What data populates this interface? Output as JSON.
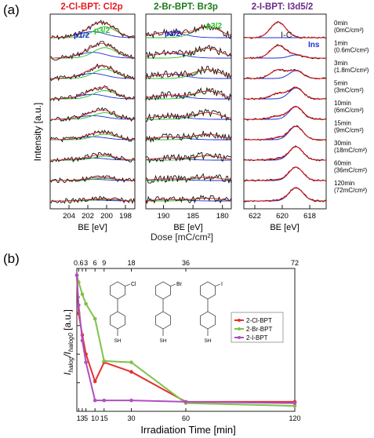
{
  "figure": {
    "panel_a_label": "(a)",
    "panel_b_label": "(b)",
    "top_xlabel": "Dose [mC/cm²]",
    "intensity_label": "Intensity [a.u.]"
  },
  "chart_data": [
    {
      "type": "line",
      "id": "xps-cl2p",
      "title": "2-Cl-BPT: Cl2p",
      "title_color": "#e8191f",
      "xlabel": "BE [eV]",
      "ylabel": "Intensity [a.u.]",
      "xlim": [
        206,
        197
      ],
      "xticks": [
        204,
        202,
        200,
        198
      ],
      "annotations": [
        "p1/2",
        "p3/2"
      ],
      "annotation_colors": [
        "#1f2fd6",
        "#22c322"
      ],
      "components": [
        "p1/2 (blue)",
        "p3/2 (green)",
        "fit envelope (red)",
        "data (black)"
      ],
      "peak_positions": {
        "p1/2": 201.5,
        "p3/2": 200.2
      },
      "relative_peak_height": [
        1.0,
        0.95,
        0.85,
        0.75,
        0.6,
        0.5,
        0.35,
        0.2,
        0.15
      ]
    },
    {
      "type": "line",
      "id": "xps-br3p",
      "title": "2-Br-BPT: Br3p",
      "title_color": "#1a7a1a",
      "xlabel": "BE [eV]",
      "ylabel": "Intensity [a.u.]",
      "xlim": [
        193,
        178.5
      ],
      "xticks": [
        190,
        185,
        180
      ],
      "annotations": [
        "p1/2",
        "p3/2"
      ],
      "annotation_colors": [
        "#1f2fd6",
        "#22c322"
      ],
      "peak_positions": {
        "p1/2": 189.2,
        "p3/2": 182.5
      },
      "relative_peak_height": [
        1.0,
        0.9,
        0.8,
        0.7,
        0.6,
        0.5,
        0.4,
        0.3,
        0.25
      ]
    },
    {
      "type": "line",
      "id": "xps-i3d",
      "title": "2-I-BPT: I3d5/2",
      "title_color": "#6a2a8a",
      "xlabel": "BE [eV]",
      "ylabel": "Intensity [a.u.]",
      "xlim": [
        622.8,
        616.8
      ],
      "xticks": [
        622,
        620,
        618
      ],
      "annotations": [
        "I-C",
        "Ins"
      ],
      "annotation_colors": [
        "#222222",
        "#1f2fd6"
      ],
      "peak_positions": {
        "I-C": 620.3,
        "Ins": 619.0
      },
      "ic_fraction": [
        1.0,
        0.8,
        0.55,
        0.35,
        0.2,
        0.12,
        0.08,
        0.05,
        0.04
      ],
      "ins_fraction": [
        0.0,
        0.2,
        0.5,
        0.7,
        0.8,
        0.85,
        0.85,
        0.85,
        0.85
      ],
      "right_labels": [
        {
          "time": "0min",
          "dose": "(0mC/cm²)"
        },
        {
          "time": "1min",
          "dose": "(0.6mC/cm²)"
        },
        {
          "time": "3min",
          "dose": "(1.8mC/cm²)"
        },
        {
          "time": "5min",
          "dose": "(3mC/cm²)"
        },
        {
          "time": "10min",
          "dose": "(6mC/cm²)"
        },
        {
          "time": "15min",
          "dose": "(9mC/cm²)"
        },
        {
          "time": "30min",
          "dose": "(18mC/cm²)"
        },
        {
          "time": "60min",
          "dose": "(36mC/cm²)"
        },
        {
          "time": "120min",
          "dose": "(72mC/cm²)"
        }
      ]
    },
    {
      "type": "line",
      "id": "halogen-decay",
      "xlabel": "Irradiation Time [min]",
      "ylabel_main": "I",
      "ylabel_sub1": "halog",
      "ylabel_mid": "/I",
      "ylabel_sub2": "halog0",
      "ylabel_unit": " [a.u.]",
      "xlim": [
        0,
        120
      ],
      "ylim": [
        0,
        1.05
      ],
      "xticks": [
        "1",
        "3",
        "5",
        "10",
        "15",
        "30",
        "60",
        "120"
      ],
      "xtick_values": [
        1,
        3,
        5,
        10,
        15,
        30,
        60,
        120
      ],
      "top_xticks": [
        "0.6",
        "3",
        "6",
        "9",
        "18",
        "36",
        "72"
      ],
      "top_xtick_values": [
        1,
        5,
        10,
        15,
        30,
        60,
        120
      ],
      "top_extra_ticks": [
        [
          "1.8",
          3
        ]
      ],
      "series": [
        {
          "name": "2-Cl-BPT",
          "color": "#e83030",
          "x": [
            0,
            1,
            3,
            5,
            10,
            15,
            30,
            60,
            120
          ],
          "y": [
            1.0,
            0.72,
            0.56,
            0.42,
            0.22,
            0.36,
            0.29,
            0.07,
            0.07
          ]
        },
        {
          "name": "2-Br-BPT",
          "color": "#7fc24a",
          "x": [
            0,
            1,
            3,
            5,
            10,
            15,
            30,
            60,
            120
          ],
          "y": [
            1.0,
            0.95,
            0.86,
            0.79,
            0.68,
            0.37,
            0.36,
            0.06,
            0.04
          ]
        },
        {
          "name": "2-I-BPT",
          "color": "#b04fc0",
          "x": [
            0,
            1,
            3,
            5,
            10,
            15,
            30,
            60,
            120
          ],
          "y": [
            1.0,
            0.78,
            0.52,
            0.36,
            0.08,
            0.08,
            0.08,
            0.07,
            0.06
          ]
        }
      ],
      "legend_placement": "center-right",
      "molecule_labels": [
        "Cl",
        "Br",
        "I"
      ],
      "molecule_sh": [
        "SH",
        "SH",
        "SH"
      ]
    }
  ]
}
